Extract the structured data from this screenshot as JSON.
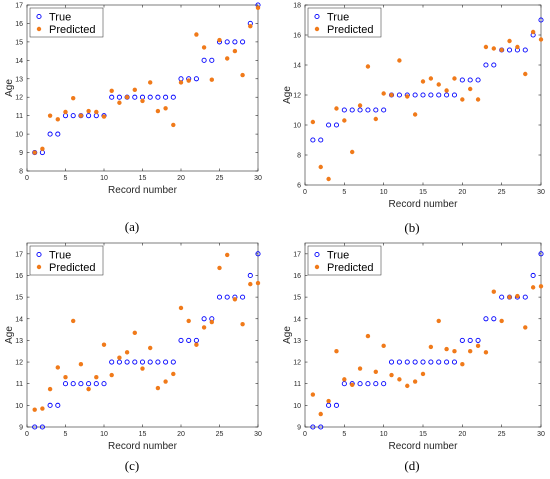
{
  "chart_data": [
    {
      "type": "scatter",
      "caption": "(a)",
      "xlabel": "Record number",
      "ylabel": "Age",
      "xlim": [
        0,
        30
      ],
      "ylim": [
        8,
        17
      ],
      "xticks": [
        0,
        5,
        10,
        15,
        20,
        25,
        30
      ],
      "yticks": [
        8,
        9,
        10,
        11,
        12,
        13,
        14,
        15,
        16,
        17
      ],
      "legend_position": "top-left",
      "series": [
        {
          "name": "True",
          "marker": "open-circle",
          "color": "#0000ff",
          "x": [
            1,
            2,
            3,
            4,
            5,
            6,
            7,
            8,
            9,
            10,
            11,
            12,
            13,
            14,
            15,
            16,
            17,
            18,
            19,
            20,
            21,
            22,
            23,
            24,
            25,
            26,
            27,
            28,
            29,
            30
          ],
          "y": [
            9,
            9,
            10,
            10,
            11,
            11,
            11,
            11,
            11,
            11,
            12,
            12,
            12,
            12,
            12,
            12,
            12,
            12,
            12,
            13,
            13,
            13,
            14,
            14,
            15,
            15,
            15,
            15,
            16,
            17
          ]
        },
        {
          "name": "Predicted",
          "marker": "filled-dot",
          "color": "#f07a1a",
          "x": [
            1,
            2,
            3,
            4,
            5,
            6,
            7,
            8,
            9,
            10,
            11,
            12,
            13,
            14,
            15,
            16,
            17,
            18,
            19,
            20,
            21,
            22,
            23,
            24,
            25,
            26,
            27,
            28,
            29,
            30
          ],
          "y": [
            9.0,
            9.2,
            11.0,
            10.8,
            11.2,
            11.95,
            11.0,
            11.25,
            11.2,
            10.95,
            12.35,
            11.7,
            12.0,
            12.4,
            11.8,
            12.8,
            11.25,
            11.4,
            10.5,
            12.8,
            12.9,
            15.4,
            14.7,
            12.95,
            15.1,
            14.1,
            14.5,
            13.2,
            15.85,
            16.85
          ]
        }
      ]
    },
    {
      "type": "scatter",
      "caption": "(b)",
      "xlabel": "Record number",
      "ylabel": "Age",
      "xlim": [
        0,
        30
      ],
      "ylim": [
        6,
        18
      ],
      "xticks": [
        0,
        5,
        10,
        15,
        20,
        25,
        30
      ],
      "yticks": [
        6,
        8,
        10,
        12,
        14,
        16,
        18
      ],
      "legend_position": "top-left",
      "series": [
        {
          "name": "True",
          "marker": "open-circle",
          "color": "#0000ff",
          "x": [
            1,
            2,
            3,
            4,
            5,
            6,
            7,
            8,
            9,
            10,
            11,
            12,
            13,
            14,
            15,
            16,
            17,
            18,
            19,
            20,
            21,
            22,
            23,
            24,
            25,
            26,
            27,
            28,
            29,
            30
          ],
          "y": [
            9,
            9,
            10,
            10,
            11,
            11,
            11,
            11,
            11,
            11,
            12,
            12,
            12,
            12,
            12,
            12,
            12,
            12,
            12,
            13,
            13,
            13,
            14,
            14,
            15,
            15,
            15,
            15,
            16,
            17
          ]
        },
        {
          "name": "Predicted",
          "marker": "filled-dot",
          "color": "#f07a1a",
          "x": [
            1,
            2,
            3,
            4,
            5,
            6,
            7,
            8,
            9,
            10,
            11,
            12,
            13,
            14,
            15,
            16,
            17,
            18,
            19,
            20,
            21,
            22,
            23,
            24,
            25,
            26,
            27,
            28,
            29,
            30
          ],
          "y": [
            10.2,
            7.2,
            6.4,
            11.1,
            10.3,
            8.2,
            11.3,
            13.9,
            10.4,
            12.1,
            12.0,
            14.3,
            11.9,
            10.7,
            12.9,
            13.1,
            12.7,
            12.3,
            13.1,
            11.7,
            12.4,
            11.7,
            15.2,
            15.1,
            15.0,
            15.6,
            15.2,
            13.4,
            16.2,
            15.7
          ]
        }
      ]
    },
    {
      "type": "scatter",
      "caption": "(c)",
      "xlabel": "Record number",
      "ylabel": "Age",
      "xlim": [
        0,
        30
      ],
      "ylim": [
        9,
        17.5
      ],
      "xticks": [
        0,
        5,
        10,
        15,
        20,
        25,
        30
      ],
      "yticks": [
        9,
        10,
        11,
        12,
        13,
        14,
        15,
        16,
        17
      ],
      "legend_position": "top-left",
      "series": [
        {
          "name": "True",
          "marker": "open-circle",
          "color": "#0000ff",
          "x": [
            1,
            2,
            3,
            4,
            5,
            6,
            7,
            8,
            9,
            10,
            11,
            12,
            13,
            14,
            15,
            16,
            17,
            18,
            19,
            20,
            21,
            22,
            23,
            24,
            25,
            26,
            27,
            28,
            29,
            30
          ],
          "y": [
            9,
            9,
            10,
            10,
            11,
            11,
            11,
            11,
            11,
            11,
            12,
            12,
            12,
            12,
            12,
            12,
            12,
            12,
            12,
            13,
            13,
            13,
            14,
            14,
            15,
            15,
            15,
            15,
            16,
            17
          ]
        },
        {
          "name": "Predicted",
          "marker": "filled-dot",
          "color": "#f07a1a",
          "x": [
            1,
            2,
            3,
            4,
            5,
            6,
            7,
            8,
            9,
            10,
            11,
            12,
            13,
            14,
            15,
            16,
            17,
            18,
            19,
            20,
            21,
            22,
            23,
            24,
            25,
            26,
            27,
            28,
            29,
            30
          ],
          "y": [
            9.8,
            9.85,
            10.75,
            11.75,
            11.3,
            13.9,
            11.9,
            10.75,
            11.3,
            12.8,
            11.4,
            12.2,
            12.45,
            13.35,
            11.7,
            12.65,
            10.8,
            11.1,
            11.45,
            14.5,
            13.9,
            12.8,
            13.6,
            13.85,
            16.35,
            16.95,
            14.9,
            13.75,
            15.6,
            15.65
          ]
        }
      ]
    },
    {
      "type": "scatter",
      "caption": "(d)",
      "xlabel": "Record number",
      "ylabel": "Age",
      "xlim": [
        0,
        30
      ],
      "ylim": [
        9,
        17.5
      ],
      "xticks": [
        0,
        5,
        10,
        15,
        20,
        25,
        30
      ],
      "yticks": [
        9,
        10,
        11,
        12,
        13,
        14,
        15,
        16,
        17
      ],
      "legend_position": "top-left",
      "series": [
        {
          "name": "True",
          "marker": "open-circle",
          "color": "#0000ff",
          "x": [
            1,
            2,
            3,
            4,
            5,
            6,
            7,
            8,
            9,
            10,
            11,
            12,
            13,
            14,
            15,
            16,
            17,
            18,
            19,
            20,
            21,
            22,
            23,
            24,
            25,
            26,
            27,
            28,
            29,
            30
          ],
          "y": [
            9,
            9,
            10,
            10,
            11,
            11,
            11,
            11,
            11,
            11,
            12,
            12,
            12,
            12,
            12,
            12,
            12,
            12,
            12,
            13,
            13,
            13,
            14,
            14,
            15,
            15,
            15,
            15,
            16,
            17
          ]
        },
        {
          "name": "Predicted",
          "marker": "filled-dot",
          "color": "#f07a1a",
          "x": [
            1,
            2,
            3,
            4,
            5,
            6,
            7,
            8,
            9,
            10,
            11,
            12,
            13,
            14,
            15,
            16,
            17,
            18,
            19,
            20,
            21,
            22,
            23,
            24,
            25,
            26,
            27,
            28,
            29,
            30
          ],
          "y": [
            10.5,
            9.6,
            10.2,
            12.5,
            11.2,
            10.95,
            11.7,
            13.2,
            11.55,
            12.75,
            11.4,
            11.2,
            10.9,
            11.1,
            11.45,
            12.7,
            13.9,
            12.6,
            12.5,
            11.9,
            12.5,
            12.75,
            12.45,
            15.25,
            13.9,
            15.0,
            15.05,
            13.6,
            15.45,
            15.5
          ]
        }
      ]
    }
  ]
}
